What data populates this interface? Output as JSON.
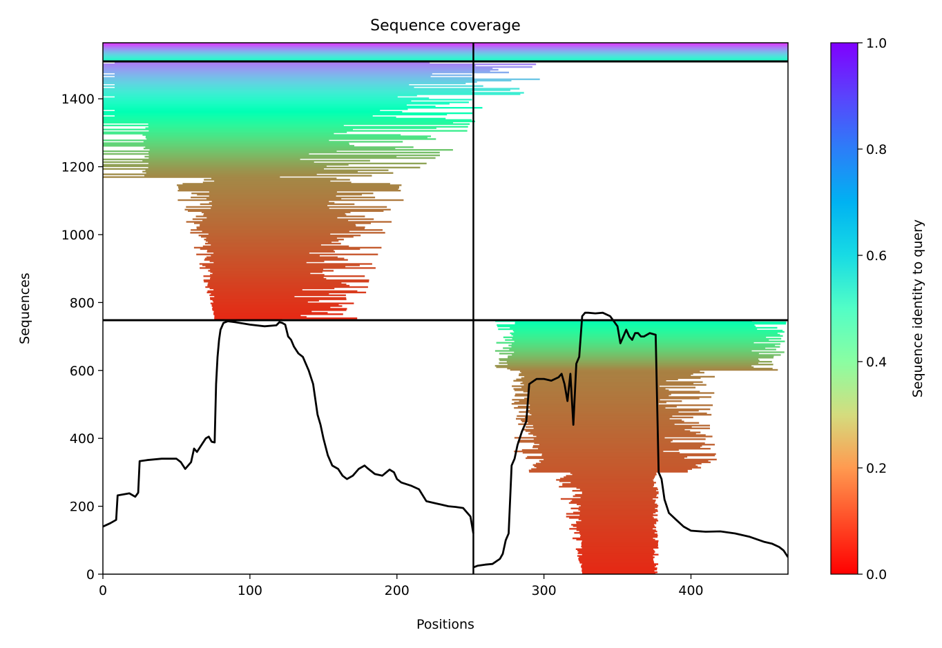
{
  "chart_data": {
    "type": "heatmap",
    "title": "Sequence coverage",
    "xlabel": "Positions",
    "ylabel": "Sequences",
    "xlim": [
      0,
      466
    ],
    "ylim": [
      0,
      1565
    ],
    "x_ticks": [
      0,
      100,
      200,
      300,
      400
    ],
    "y_ticks": [
      0,
      200,
      400,
      600,
      800,
      1000,
      1200,
      1400
    ],
    "grid": false,
    "chain_boundary_x": 252,
    "block_boundaries_y": [
      748,
      1510
    ],
    "colorbar": {
      "label": "Sequence identity to query",
      "colormap": "rainbow_r",
      "min": 0.0,
      "max": 1.0,
      "ticks": [
        0.0,
        0.2,
        0.4,
        0.6,
        0.8,
        1.0
      ],
      "tick_labels": [
        "0.0",
        "0.2",
        "0.4",
        "0.6",
        "0.8",
        "1.0"
      ]
    },
    "coverage_series": {
      "color": "#000000",
      "chain_A": {
        "x": [
          0,
          5,
          9,
          10,
          18,
          22,
          24,
          25,
          30,
          40,
          50,
          53,
          56,
          60,
          62,
          64,
          67,
          70,
          72,
          74,
          76,
          77,
          78,
          79,
          80,
          82,
          85,
          90,
          100,
          110,
          118,
          120,
          122,
          124,
          126,
          128,
          130,
          133,
          136,
          140,
          143,
          146,
          148,
          150,
          153,
          156,
          160,
          163,
          166,
          170,
          174,
          178,
          180,
          185,
          190,
          195,
          198,
          200,
          203,
          210,
          215,
          220,
          225,
          230,
          235,
          240,
          245,
          250,
          252
        ],
        "y": [
          140,
          150,
          160,
          232,
          238,
          228,
          240,
          333,
          336,
          340,
          340,
          330,
          310,
          330,
          370,
          360,
          380,
          400,
          405,
          390,
          388,
          560,
          640,
          690,
          720,
          740,
          745,
          742,
          735,
          730,
          733,
          742,
          740,
          735,
          700,
          690,
          670,
          650,
          640,
          600,
          560,
          470,
          440,
          400,
          350,
          320,
          310,
          290,
          280,
          290,
          310,
          320,
          312,
          295,
          290,
          308,
          300,
          280,
          270,
          260,
          250,
          215,
          210,
          205,
          200,
          198,
          195,
          170,
          120
        ]
      },
      "chain_B": {
        "x": [
          252,
          255,
          260,
          265,
          270,
          272,
          274,
          276,
          278,
          280,
          282,
          285,
          288,
          290,
          295,
          300,
          305,
          310,
          312,
          314,
          316,
          318,
          320,
          322,
          324,
          326,
          328,
          330,
          335,
          340,
          345,
          350,
          352,
          354,
          356,
          358,
          360,
          362,
          364,
          366,
          368,
          372,
          376,
          378,
          380,
          382,
          385,
          390,
          395,
          400,
          410,
          420,
          430,
          440,
          450,
          455,
          460,
          463,
          466
        ],
        "y": [
          20,
          25,
          28,
          30,
          45,
          60,
          100,
          120,
          320,
          340,
          380,
          420,
          450,
          560,
          575,
          575,
          570,
          580,
          590,
          560,
          510,
          590,
          440,
          620,
          640,
          760,
          770,
          770,
          768,
          770,
          760,
          730,
          680,
          700,
          720,
          700,
          690,
          710,
          710,
          700,
          700,
          710,
          705,
          300,
          280,
          220,
          180,
          160,
          140,
          128,
          125,
          126,
          120,
          110,
          95,
          90,
          80,
          70,
          50
        ]
      }
    }
  }
}
